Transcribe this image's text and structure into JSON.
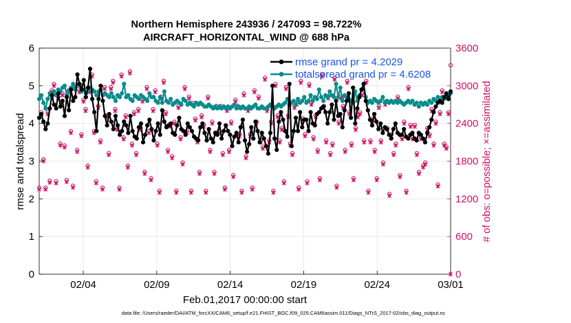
{
  "chart_data": {
    "type": "line",
    "title_line1": "Northern Hemisphere 243936 / 247093 = 98.722%",
    "title_line2": "AIRCRAFT_HORIZONTAL_WIND @ 688 hPa",
    "xlabel": "Feb.01,2017 00:00:00 start",
    "ylabel": "rmse and totalspread",
    "ylabel_right": "# of obs: o=possible; ×=assimilated",
    "footnote": "data file: /Users/raeder/DAI/ATM_forcXX/CAM6_setup/f.e21.FHIST_BGC.f09_025.CAM6assim.011/Diags_NTrS_2017-02/obs_diag_output.nc",
    "x_range_days": [
      0,
      28
    ],
    "x_ticks": [
      {
        "day": 3,
        "label": "02/04"
      },
      {
        "day": 8,
        "label": "02/09"
      },
      {
        "day": 13,
        "label": "02/14"
      },
      {
        "day": 18,
        "label": "02/19"
      },
      {
        "day": 23,
        "label": "02/24"
      },
      {
        "day": 28,
        "label": "03/01"
      }
    ],
    "ylim": [
      0,
      6
    ],
    "y_ticks": [
      "0",
      "1",
      "2",
      "3",
      "4",
      "5",
      "6"
    ],
    "ylim_right": [
      0,
      3600
    ],
    "y_ticks_right": [
      "0",
      "600",
      "1200",
      "1800",
      "2400",
      "3000",
      "3600"
    ],
    "series": [
      {
        "name": "rmse",
        "legend": "rmse grand pr = 4.2029",
        "color": "#000000",
        "marker": "filled-circle",
        "values": [
          4.15,
          4.25,
          4.05,
          3.85,
          4.0,
          4.4,
          4.75,
          4.5,
          4.4,
          4.8,
          4.45,
          4.6,
          4.2,
          4.7,
          4.35,
          4.9,
          4.6,
          4.7,
          5.3,
          5.05,
          4.9,
          5.15,
          4.7,
          4.95,
          5.45,
          4.65,
          4.3,
          3.8,
          4.65,
          5.0,
          4.6,
          4.2,
          3.95,
          4.25,
          4.05,
          3.85,
          4.2,
          3.95,
          3.7,
          3.8,
          4.05,
          3.95,
          3.75,
          4.2,
          3.8,
          3.65,
          3.6,
          3.9,
          4.0,
          3.5,
          3.7,
          3.95,
          4.1,
          3.85,
          3.55,
          3.8,
          4.0,
          3.7,
          4.35,
          4.05,
          3.9,
          3.95,
          4.0,
          3.75,
          3.7,
          3.95,
          4.15,
          3.85,
          3.8,
          3.7,
          4.0,
          3.9,
          3.8,
          3.65,
          3.6,
          3.55,
          3.9,
          4.0,
          3.75,
          3.55,
          3.85,
          3.6,
          3.5,
          3.75,
          3.7,
          4.0,
          3.6,
          3.8,
          3.95,
          3.8,
          3.7,
          3.4,
          3.65,
          3.75,
          3.5,
          3.9,
          4.1,
          3.55,
          3.25,
          3.45,
          3.9,
          3.6,
          4.05,
          3.8,
          3.5,
          3.75,
          3.6,
          3.4,
          3.2,
          3.75,
          5.0,
          3.6,
          3.3,
          4.05,
          4.3,
          4.1,
          3.8,
          3.65,
          5.05,
          3.4,
          3.8,
          4.15,
          3.8,
          4.3,
          3.9,
          4.1,
          4.1,
          3.8,
          4.3,
          4.0,
          3.95,
          4.25,
          4.3,
          4.4,
          4.45,
          4.3,
          4.0,
          4.3,
          4.5,
          4.1,
          4.6,
          4.2,
          4.25,
          3.9,
          4.35,
          4.6,
          4.8,
          4.15,
          4.95,
          4.0,
          4.4,
          4.7,
          4.9,
          5.05,
          4.6,
          4.35,
          4.1,
          3.95,
          4.25,
          4.05,
          3.85,
          4.0,
          3.75,
          3.9,
          3.85,
          3.7,
          3.6,
          3.85,
          4.0,
          3.75,
          3.7,
          3.7,
          3.85,
          3.65,
          3.6,
          3.7,
          3.75,
          3.6,
          3.55,
          3.75,
          3.7,
          3.6,
          3.5,
          3.75,
          3.9,
          4.1,
          4.3,
          4.45,
          4.55,
          4.6,
          4.55,
          4.7,
          4.8,
          4.65,
          4.85
        ]
      },
      {
        "name": "totalspread",
        "legend": "totalspread grand pr = 4.6208",
        "color": "#0a8c8c",
        "marker": "filled-circle",
        "values": [
          4.65,
          4.75,
          4.55,
          4.4,
          4.65,
          4.8,
          4.7,
          4.85,
          4.75,
          4.9,
          4.85,
          4.95,
          5.0,
          4.75,
          4.85,
          4.95,
          5.05,
          4.9,
          5.0,
          5.0,
          4.85,
          4.9,
          4.8,
          4.85,
          4.95,
          4.9,
          4.85,
          4.75,
          4.85,
          4.9,
          4.75,
          4.8,
          4.75,
          4.7,
          4.8,
          4.7,
          4.6,
          4.75,
          4.7,
          4.8,
          5.05,
          4.7,
          4.75,
          4.65,
          4.6,
          4.75,
          4.7,
          4.65,
          4.75,
          4.7,
          4.65,
          4.6,
          4.8,
          4.7,
          4.7,
          4.6,
          4.55,
          4.7,
          4.55,
          4.85,
          4.6,
          4.55,
          4.65,
          4.5,
          4.55,
          4.6,
          4.55,
          4.5,
          4.65,
          4.6,
          4.5,
          4.55,
          4.5,
          4.45,
          4.55,
          4.5,
          4.55,
          4.5,
          4.45,
          4.45,
          4.5,
          4.45,
          4.4,
          4.45,
          4.4,
          4.45,
          4.4,
          4.45,
          4.4,
          4.45,
          4.4,
          4.45,
          4.5,
          4.4,
          4.45,
          4.4,
          4.45,
          4.4,
          4.4,
          4.45,
          4.4,
          4.45,
          4.5,
          4.4,
          4.4,
          4.45,
          4.4,
          4.4,
          4.45,
          4.5,
          4.45,
          4.4,
          4.45,
          4.5,
          4.45,
          4.5,
          4.55,
          4.65,
          4.5,
          4.55,
          4.6,
          4.5,
          4.65,
          4.55,
          4.6,
          4.7,
          4.55,
          4.6,
          4.75,
          4.6,
          4.7,
          4.65,
          4.9,
          4.7,
          4.6,
          4.75,
          4.7,
          4.85,
          4.75,
          4.7,
          5.05,
          4.7,
          4.95,
          4.6,
          4.75,
          4.7,
          4.65,
          4.6,
          4.55,
          4.85,
          4.6,
          4.75,
          4.9,
          5.05,
          4.7,
          4.55,
          4.6,
          4.55,
          4.65,
          4.6,
          4.55,
          4.6,
          4.7,
          4.55,
          4.6,
          4.55,
          4.6,
          4.55,
          4.6,
          4.55,
          4.6,
          4.55,
          4.5,
          4.55,
          4.6,
          4.55,
          4.6,
          4.5,
          4.55,
          4.45,
          4.55,
          4.5,
          4.55,
          4.5,
          4.6,
          4.55,
          4.65,
          4.6,
          4.7,
          4.6,
          4.7,
          4.65,
          4.7,
          4.75,
          4.8
        ]
      }
    ],
    "obs_possible": {
      "name": "possible",
      "marker": "o",
      "color": "#cc1166",
      "values": [
        1350,
        2550,
        1800,
        1350,
        2550,
        1460,
        2900,
        3000,
        1450,
        2800,
        2050,
        2850,
        2020,
        1470,
        2900,
        2250,
        1380,
        2950,
        1950,
        2900,
        2200,
        2750,
        2600,
        1700,
        2900,
        3150,
        2250,
        1450,
        2650,
        2100,
        1350,
        2950,
        2500,
        1900,
        2950,
        3050,
        2600,
        2300,
        1350,
        3150,
        2150,
        2500,
        1700,
        3200,
        2050,
        2550,
        1900,
        2600,
        2300,
        2750,
        1600,
        2950,
        2250,
        1500,
        2600,
        2900,
        2050,
        1300,
        2800,
        3050,
        2550,
        1950,
        2350,
        1850,
        2400,
        1300,
        2650,
        2150,
        1750,
        2950,
        2250,
        2800,
        1300,
        2700,
        2450,
        2100,
        1600,
        2500,
        2350,
        1300,
        2800,
        1950,
        2400,
        1600,
        2650,
        2250,
        2650,
        1900,
        1350,
        2600,
        1950,
        2400,
        1550,
        2750,
        2650,
        2200,
        1300,
        2850,
        1850,
        2600,
        2200,
        1350,
        2900,
        2400,
        2800,
        2100,
        2000,
        3100,
        2600,
        2100,
        2400,
        1300,
        3000,
        2500,
        2100,
        2300,
        1450,
        2950,
        2500,
        2050,
        1900,
        2650,
        2700,
        1350,
        3050,
        2450,
        2200,
        1450,
        3000,
        2700,
        2150,
        2500,
        1950,
        1500,
        3150,
        2650,
        2100,
        2800,
        1900,
        2050,
        3100,
        1380,
        2400,
        2800,
        2650,
        1950,
        3050,
        2550,
        2050,
        1500,
        2300,
        2500,
        2550,
        2850,
        2100,
        3050,
        1300,
        2100,
        2450,
        1950,
        1500,
        2650,
        2100,
        1750,
        2700,
        2300,
        1250,
        2200,
        1900,
        2050,
        2800,
        1550,
        2150,
        2400,
        1300,
        2950,
        2350,
        2150,
        2350,
        1900,
        1600,
        2150,
        1700,
        1750,
        2300,
        2200,
        2600,
        2050,
        2400,
        1400,
        2550,
        2900,
        2050,
        2000,
        2550,
        3300
      ]
    },
    "obs_assimilated": {
      "name": "assimilated",
      "marker": "x",
      "color": "#cc1166",
      "values": [
        1350,
        2550,
        1800,
        1350,
        2550,
        1460,
        2900,
        3000,
        1450,
        2800,
        2050,
        2850,
        2020,
        1470,
        2900,
        2250,
        1380,
        2950,
        1950,
        2900,
        2200,
        2750,
        2600,
        1700,
        2900,
        3150,
        2250,
        1450,
        2650,
        2100,
        1350,
        2950,
        2500,
        1900,
        2950,
        3050,
        2600,
        2300,
        1350,
        3150,
        2150,
        2500,
        1700,
        3200,
        2050,
        2550,
        1900,
        2600,
        2300,
        2750,
        1600,
        2950,
        2250,
        1500,
        2600,
        2900,
        2050,
        1300,
        2800,
        3050,
        2550,
        1950,
        2350,
        1850,
        2400,
        1300,
        2650,
        2150,
        1750,
        2950,
        2250,
        2800,
        1300,
        2700,
        2450,
        2100,
        1600,
        2500,
        2350,
        1300,
        2800,
        1950,
        2400,
        1600,
        2650,
        2250,
        2650,
        1900,
        1350,
        2600,
        1950,
        2400,
        1550,
        2750,
        2650,
        2200,
        1300,
        2850,
        1850,
        2600,
        2200,
        1350,
        2900,
        2400,
        2800,
        2100,
        2000,
        3100,
        2600,
        2100,
        2400,
        1300,
        3000,
        2500,
        2100,
        2300,
        1450,
        2950,
        2500,
        2050,
        1900,
        2650,
        2700,
        1350,
        3050,
        2450,
        2200,
        1450,
        3000,
        2700,
        2150,
        2500,
        1950,
        1500,
        3150,
        2650,
        2100,
        2800,
        1900,
        2050,
        3100,
        1380,
        2400,
        2800,
        2650,
        1950,
        3050,
        2550,
        2050,
        1500,
        2300,
        2500,
        2550,
        2850,
        2100,
        3050,
        1300,
        2100,
        2450,
        1950,
        1500,
        2650,
        2100,
        1750,
        2700,
        2300,
        1250,
        2200,
        1900,
        2050,
        2800,
        1550,
        2150,
        2400,
        1300,
        2950,
        2350,
        2150,
        2350,
        1900,
        1600,
        2150,
        1700,
        1750,
        2300,
        2200,
        2600,
        2050,
        2400,
        1400,
        2550,
        2900,
        2050,
        2000,
        2550,
        0
      ]
    }
  }
}
